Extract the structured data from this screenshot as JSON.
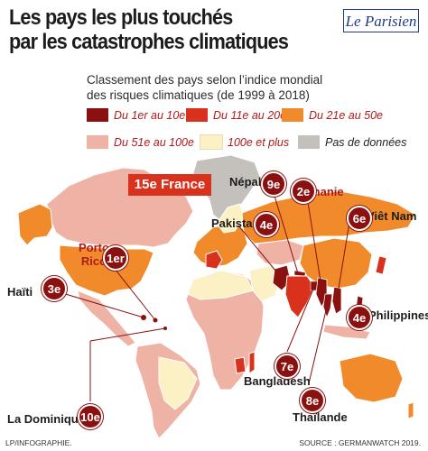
{
  "header": {
    "title_line1": "Les pays les plus touchés",
    "title_line2": "par les catastrophes climatiques",
    "logo": "Le Parisien"
  },
  "subtitle": {
    "line1": "Classement des pays selon l’indice mondial",
    "line2": "des risques climatiques (de 1999 à 2018)"
  },
  "legend": [
    {
      "label": "Du 1er au 10e",
      "color": "#8b1010"
    },
    {
      "label": "Du 11e au 20e",
      "color": "#d8321c"
    },
    {
      "label": "Du 21e au 50e",
      "color": "#f08a2a"
    },
    {
      "label": "Du 51e au 100e",
      "color": "#efb3a6"
    },
    {
      "label": "100e et plus",
      "color": "#fbf1c4"
    },
    {
      "label": "Pas de données",
      "color": "#c4c0bc"
    }
  ],
  "highlight": {
    "label": "15e France"
  },
  "countries": [
    {
      "name": "Porto Rico",
      "rank": "1er"
    },
    {
      "name": "Birmanie",
      "rank": "2e"
    },
    {
      "name": "Haïti",
      "rank": "3e"
    },
    {
      "name": "Philippines",
      "rank": "4e"
    },
    {
      "name": "Pakistan",
      "rank": "4e"
    },
    {
      "name": "Viêt Nam",
      "rank": "6e"
    },
    {
      "name": "Bangladesh",
      "rank": "7e"
    },
    {
      "name": "Thaïlande",
      "rank": "8e"
    },
    {
      "name": "Népal",
      "rank": "9e"
    },
    {
      "name": "La Dominique",
      "rank": "10e"
    }
  ],
  "footer": {
    "credit": "LP/INFOGRAPHIE.",
    "source": "SOURCE : GERMANWATCH 2019."
  }
}
